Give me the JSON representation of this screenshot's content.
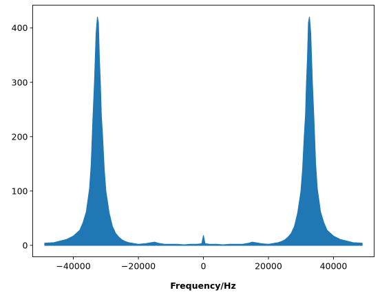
{
  "chart_data": {
    "type": "line",
    "title": "",
    "xlabel": "Frequency/Hz",
    "ylabel": "",
    "xlim": [
      -52500,
      52500
    ],
    "ylim": [
      -21,
      442
    ],
    "grid": false,
    "legend": "none",
    "color": "#1f77b4",
    "x_ticks": [
      {
        "value": -40000,
        "label": "−40000"
      },
      {
        "value": -20000,
        "label": "−20000"
      },
      {
        "value": 0,
        "label": "0"
      },
      {
        "value": 20000,
        "label": "20000"
      },
      {
        "value": 40000,
        "label": "40000"
      }
    ],
    "y_ticks": [
      {
        "value": 0,
        "label": "0"
      },
      {
        "value": 100,
        "label": "100"
      },
      {
        "value": 200,
        "label": "200"
      },
      {
        "value": 300,
        "label": "300"
      },
      {
        "value": 400,
        "label": "400"
      }
    ],
    "series": [
      {
        "x": [
          -48800,
          -46000,
          -44000,
          -42000,
          -40000,
          -38000,
          -37000,
          -36000,
          -35000,
          -34500,
          -34000,
          -33500,
          -33000,
          -32600,
          -32300,
          -32000,
          -31700,
          -31400,
          -31000,
          -30500,
          -30000,
          -29000,
          -28000,
          -27000,
          -26000,
          -25000,
          -24000,
          -23000,
          -22000,
          -21000,
          -20000,
          -18000,
          -16000,
          -15000,
          -14000,
          -12000,
          -10000,
          -8000,
          -6000,
          -4000,
          -2000,
          -500,
          0,
          500,
          2000,
          4000,
          6000,
          8000,
          10000,
          12000,
          14000,
          15000,
          16000,
          18000,
          20000,
          21000,
          22000,
          23000,
          24000,
          25000,
          26000,
          27000,
          28000,
          29000,
          30000,
          30500,
          31000,
          31400,
          31700,
          32000,
          32300,
          32600,
          33000,
          33500,
          34000,
          34500,
          35000,
          36000,
          37000,
          38000,
          40000,
          42000,
          44000,
          46000,
          48800
        ],
        "upper": [
          4,
          5,
          8,
          11,
          17,
          28,
          42,
          62,
          105,
          150,
          230,
          300,
          390,
          420,
          410,
          345,
          300,
          240,
          200,
          140,
          100,
          60,
          35,
          22,
          15,
          10,
          7,
          5,
          4,
          3,
          2,
          3,
          5,
          6,
          4,
          2,
          2,
          2,
          1,
          2,
          2,
          3,
          18,
          3,
          2,
          2,
          1,
          2,
          2,
          2,
          4,
          6,
          5,
          3,
          2,
          3,
          4,
          5,
          7,
          10,
          15,
          22,
          35,
          60,
          100,
          140,
          200,
          240,
          300,
          345,
          410,
          420,
          390,
          300,
          230,
          150,
          105,
          62,
          42,
          28,
          17,
          11,
          8,
          5,
          4
        ],
        "lower": [
          0,
          0,
          0,
          0,
          0,
          0,
          0,
          0,
          0,
          0,
          0,
          0,
          0,
          0,
          0,
          0,
          0,
          0,
          0,
          0,
          0,
          0,
          0,
          0,
          0,
          0,
          0,
          0,
          0,
          0,
          0,
          0,
          0,
          0,
          0,
          0,
          0,
          0,
          0,
          0,
          0,
          0,
          0,
          0,
          0,
          0,
          0,
          0,
          0,
          0,
          0,
          0,
          0,
          0,
          0,
          0,
          0,
          0,
          0,
          0,
          0,
          0,
          0,
          0,
          0,
          0,
          0,
          0,
          0,
          0,
          0,
          0,
          0,
          0,
          0,
          0,
          0,
          0,
          0,
          0,
          0,
          0,
          0,
          0,
          0
        ]
      }
    ]
  }
}
